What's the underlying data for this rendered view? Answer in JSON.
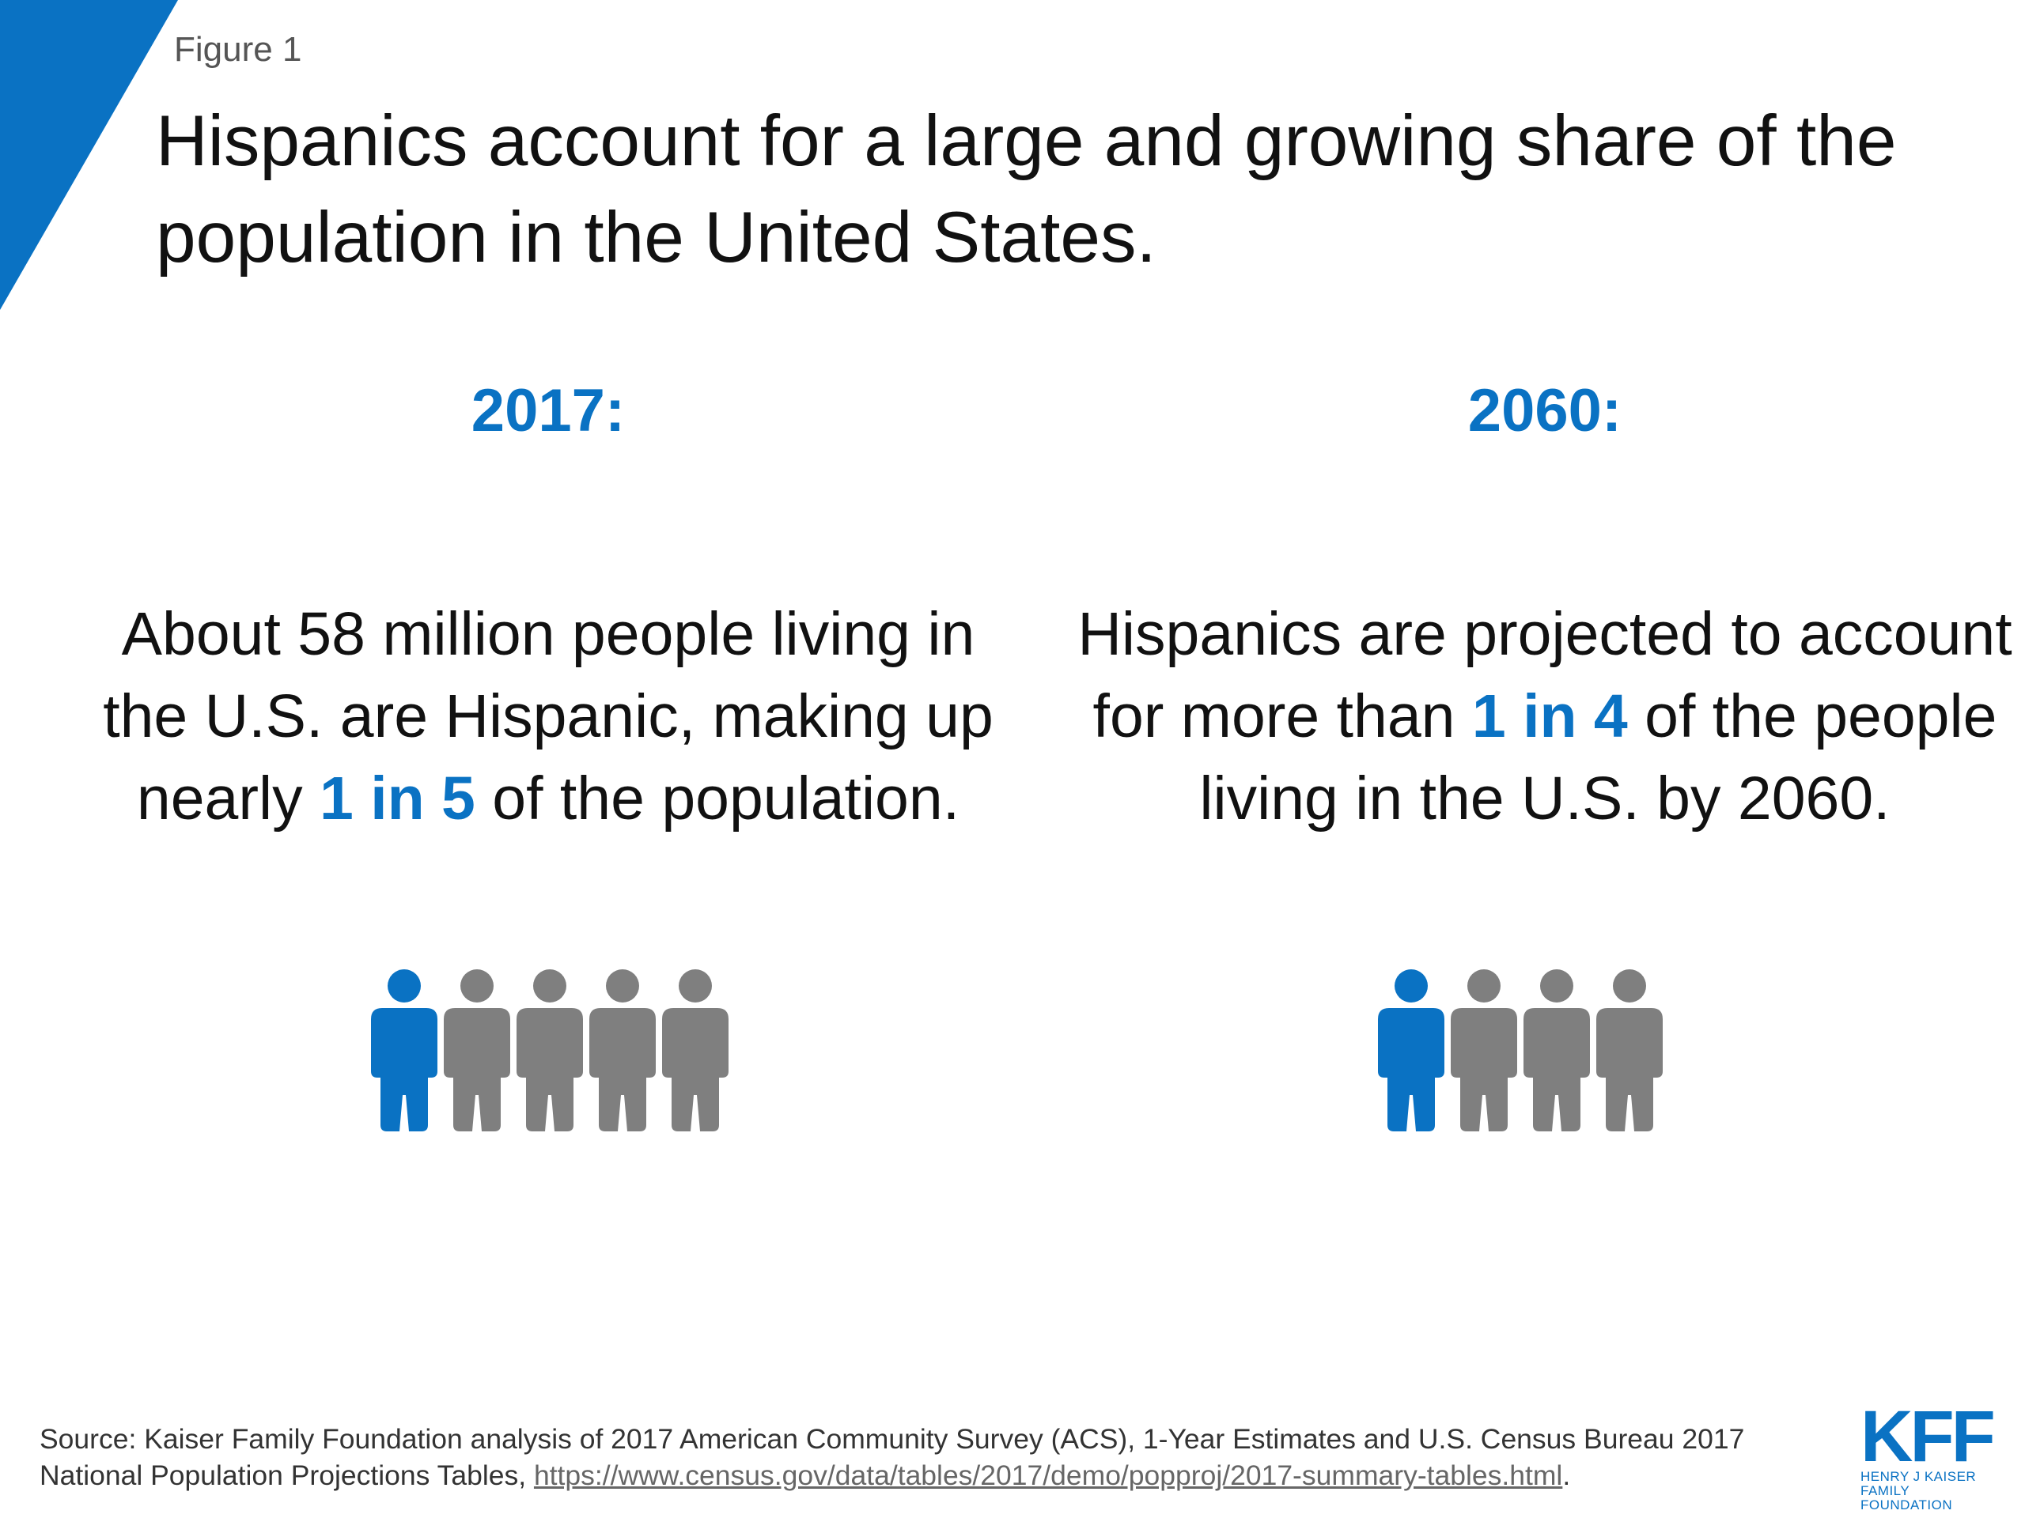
{
  "colors": {
    "accent_blue": "#0a72c3",
    "person_gray": "#7f7f7f",
    "text": "#111111"
  },
  "figure_label": "Figure 1",
  "title": "Hispanics account for a large and growing share of the population in the United States.",
  "left_panel": {
    "year": "2017:",
    "text_before": "About 58 million people living in the U.S. are Hispanic, making up nearly ",
    "highlight": "1 in 5",
    "text_after": " of the population.",
    "people_icons": {
      "highlighted": 1,
      "total": 5
    }
  },
  "right_panel": {
    "year": "2060:",
    "text_before": "Hispanics are projected to account for more than ",
    "highlight": "1 in 4",
    "text_after": " of the people living in the U.S. by 2060.",
    "people_icons": {
      "highlighted": 1,
      "total": 4
    }
  },
  "source": {
    "text": "Source: Kaiser Family Foundation analysis of 2017 American Community Survey (ACS), 1-Year Estimates and U.S. Census Bureau 2017 National Population Projections Tables, ",
    "link": "https://www.census.gov/data/tables/2017/demo/popproj/2017-summary-tables.html",
    "end": "."
  },
  "logo": {
    "wordmark": "KFF",
    "line1": "HENRY J KAISER",
    "line2": "FAMILY FOUNDATION"
  }
}
